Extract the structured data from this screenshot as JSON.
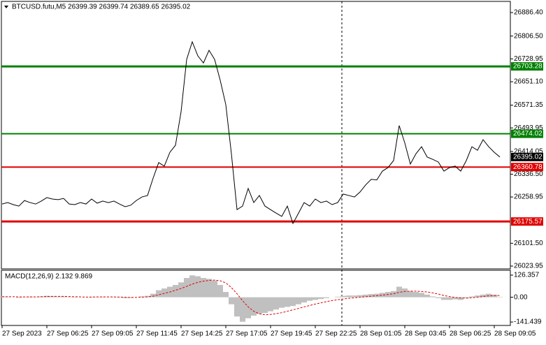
{
  "chart_data": [
    {
      "type": "line",
      "title": "BTCUSD.futu,M5  26399.39 26399.74 26389.65 26395.02",
      "color": "#000000",
      "categories": [
        "27 Sep 2023",
        null,
        null,
        null,
        null,
        null,
        null,
        null,
        "27 Sep 06:25",
        null,
        null,
        null,
        null,
        null,
        null,
        null,
        "27 Sep 09:05",
        null,
        null,
        null,
        null,
        null,
        null,
        null,
        "27 Sep 11:45",
        null,
        null,
        null,
        null,
        null,
        null,
        null,
        "27 Sep 14:25",
        null,
        null,
        null,
        null,
        null,
        null,
        null,
        "27 Sep 17:05",
        null,
        null,
        null,
        null,
        null,
        null,
        null,
        "27 Sep 19:45",
        null,
        null,
        null,
        null,
        null,
        null,
        null,
        "27 Sep 22:25",
        null,
        null,
        null,
        null,
        null,
        null,
        null,
        "28 Sep 01:05",
        null,
        null,
        null,
        null,
        null,
        null,
        null,
        "28 Sep 03:45",
        null,
        null,
        null,
        null,
        null,
        null,
        null,
        "28 Sep 06:25",
        null,
        null,
        null,
        null,
        null,
        null,
        null,
        "28 Sep 09:05",
        null
      ],
      "values": [
        26235,
        26240,
        26233,
        26228,
        26247,
        26240,
        26235,
        26245,
        26257,
        26252,
        26250,
        26254,
        26235,
        26233,
        26240,
        26235,
        26252,
        26238,
        26245,
        26240,
        26245,
        26235,
        26226,
        26231,
        26247,
        26259,
        26264,
        26323,
        26376,
        26364,
        26411,
        26435,
        26549,
        26727,
        26787,
        26739,
        26715,
        26758,
        26727,
        26656,
        26573,
        26406,
        26216,
        26228,
        26288,
        26240,
        26264,
        26228,
        26216,
        26204,
        26193,
        26228,
        26169,
        26204,
        26240,
        26228,
        26252,
        26240,
        26245,
        26233,
        26240,
        26269,
        26264,
        26259,
        26276,
        26300,
        26319,
        26317,
        26347,
        26359,
        26383,
        26502,
        26443,
        26371,
        26406,
        26430,
        26395,
        26387,
        26378,
        26347,
        26359,
        26364,
        26347,
        26383,
        26430,
        26418,
        26454,
        26430,
        26411,
        26395.02
      ],
      "ylim": [
        26014.4,
        26924.4
      ],
      "yticks": [
        {
          "value": 26886.4,
          "label": "26886.40"
        },
        {
          "value": 26806.5,
          "label": "26806.50"
        },
        26728.95,
        {
          "value": 26651.1,
          "label": "26651.10"
        },
        26571.35,
        26493.95,
        26414.05,
        {
          "value": 26336.5,
          "label": "26336.50"
        },
        26258.95,
        {
          "value": 26101.5,
          "label": "26101.50"
        },
        26023.95
      ],
      "levels": [
        {
          "value": 26703.28,
          "color": "#008000",
          "width": 3
        },
        {
          "value": 26474.02,
          "color": "#008000",
          "width": 2
        },
        {
          "value": 26360.78,
          "color": "#e00000",
          "width": 2
        },
        {
          "value": 26175.57,
          "color": "#e00000",
          "width": 3
        }
      ]
    },
    {
      "type": "macd",
      "title": "MACD(12,26,9) 2.132 9.869",
      "ylim": [
        -161,
        154
      ],
      "yticks": [
        126.357,
        {
          "value": 0,
          "label": "0.00"
        },
        -141.439
      ],
      "series": [
        {
          "kind": "bar",
          "color": "#c0c0c0",
          "values": [
            5,
            3,
            0,
            -3,
            2,
            4,
            2,
            5,
            8,
            6,
            4,
            5,
            2,
            -2,
            0,
            -1,
            3,
            2,
            3,
            1,
            2,
            -2,
            -5,
            -4,
            0,
            5,
            8,
            20,
            40,
            50,
            60,
            70,
            85,
            110,
            125,
            120,
            110,
            105,
            95,
            70,
            30,
            -40,
            -110,
            -140,
            -120,
            -105,
            -95,
            -90,
            -80,
            -70,
            -60,
            -55,
            -50,
            -40,
            -30,
            -20,
            -15,
            -10,
            -5,
            0,
            3,
            8,
            10,
            10,
            12,
            15,
            18,
            20,
            25,
            30,
            35,
            60,
            50,
            35,
            30,
            25,
            15,
            5,
            -5,
            -15,
            -15,
            -12,
            -15,
            -5,
            5,
            10,
            15,
            20,
            15,
            2.132
          ]
        },
        {
          "kind": "line",
          "color": "#e00000",
          "dashed": true,
          "values": [
            3,
            3,
            3,
            2,
            2,
            2,
            2,
            3,
            4,
            5,
            5,
            5,
            4,
            3,
            2,
            1,
            1,
            2,
            2,
            2,
            2,
            1,
            0,
            -1,
            -1,
            0,
            2,
            6,
            14,
            22,
            30,
            40,
            50,
            62,
            75,
            85,
            92,
            96,
            98,
            94,
            82,
            55,
            20,
            -20,
            -55,
            -80,
            -95,
            -100,
            -98,
            -94,
            -88,
            -80,
            -72,
            -64,
            -55,
            -47,
            -39,
            -32,
            -25,
            -19,
            -14,
            -10,
            -6,
            -3,
            0,
            3,
            6,
            9,
            12,
            16,
            20,
            28,
            33,
            35,
            35,
            33,
            30,
            25,
            18,
            10,
            4,
            -1,
            -4,
            -5,
            -3,
            0,
            4,
            8,
            10,
            9.869
          ]
        }
      ]
    }
  ]
}
